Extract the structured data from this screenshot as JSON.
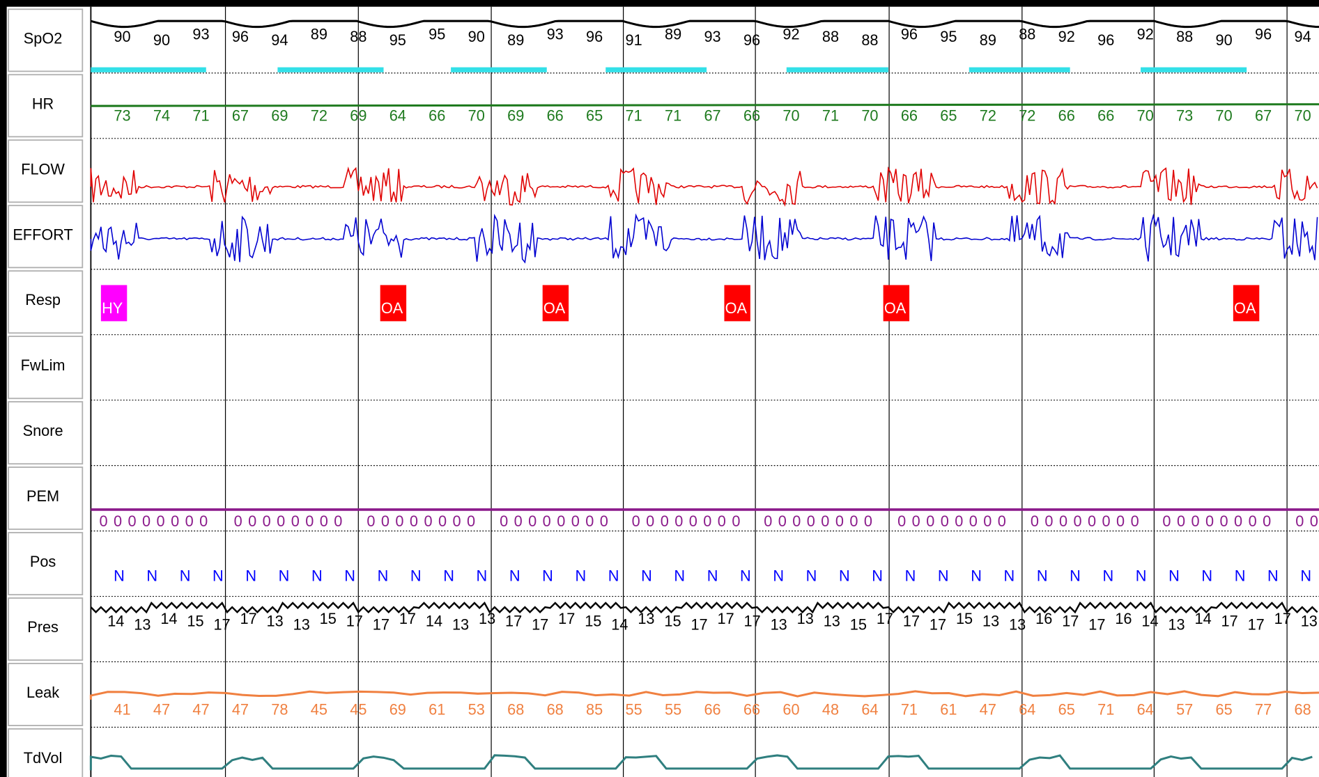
{
  "channels": [
    "SpO2",
    "HR",
    "FLOW",
    "EFFORT",
    "Resp",
    "FwLim",
    "Snore",
    "PEM",
    "Pos",
    "Pres",
    "Leak",
    "TdVol"
  ],
  "spo2": [
    "90",
    "90",
    "93",
    "96",
    "94",
    "89",
    "88",
    "95",
    "95",
    "90",
    "89",
    "93",
    "96",
    "91",
    "89",
    "93",
    "96",
    "92",
    "88",
    "88",
    "96",
    "95",
    "89",
    "88",
    "92",
    "96",
    "92",
    "88",
    "90",
    "96",
    "94"
  ],
  "hr": [
    "73",
    "74",
    "71",
    "67",
    "69",
    "72",
    "69",
    "64",
    "66",
    "70",
    "69",
    "66",
    "65",
    "71",
    "71",
    "67",
    "66",
    "70",
    "71",
    "70",
    "66",
    "65",
    "72",
    "72",
    "66",
    "66",
    "70",
    "73",
    "70",
    "67",
    "70"
  ],
  "resp_events": [
    "HY",
    "OA",
    "OA",
    "OA",
    "OA",
    "OA"
  ],
  "pem": [
    "0 0 0 0 0 0 0 0",
    "0 0 0 0 0 0 0 0",
    "0 0 0 0 0 0 0 0",
    "0 0 0 0 0 0 0 0",
    "0 0 0 0 0 0 0 0",
    "0 0 0 0 0 0 0 0",
    "0 0 0 0 0 0 0 0",
    "0 0 0 0 0 0 0 0",
    "0 0 0 0 0 0 0 0",
    "0 0"
  ],
  "pos": [
    "N",
    "N",
    "N",
    "N",
    "N",
    "N",
    "N",
    "N",
    "N",
    "N",
    "N",
    "N",
    "N",
    "N",
    "N",
    "N",
    "N",
    "N",
    "N",
    "N",
    "N",
    "N",
    "N",
    "N",
    "N",
    "N",
    "N",
    "N",
    "N",
    "N",
    "N",
    "N",
    "N",
    "N",
    "N",
    "N",
    "N"
  ],
  "pres": [
    "14",
    "13",
    "14",
    "15",
    "17",
    "17",
    "13",
    "13",
    "15",
    "17",
    "17",
    "17",
    "14",
    "13",
    "13",
    "17",
    "17",
    "17",
    "15",
    "14",
    "13",
    "15",
    "17",
    "17",
    "17",
    "13",
    "13",
    "13",
    "15",
    "17",
    "17",
    "17",
    "15",
    "13",
    "13",
    "16",
    "17",
    "17",
    "16",
    "14",
    "13",
    "14",
    "17",
    "17",
    "17",
    "13"
  ],
  "leak": [
    "41",
    "47",
    "47",
    "47",
    "78",
    "45",
    "45",
    "69",
    "61",
    "53",
    "68",
    "68",
    "85",
    "55",
    "55",
    "66",
    "66",
    "60",
    "48",
    "64",
    "71",
    "61",
    "47",
    "64",
    "65",
    "71",
    "64",
    "57",
    "65",
    "77",
    "68"
  ]
}
